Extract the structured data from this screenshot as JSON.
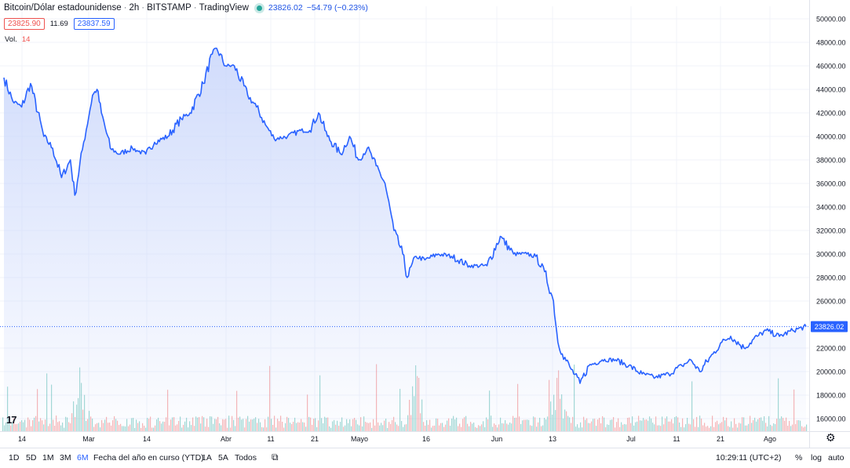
{
  "header": {
    "symbol": "Bitcoin/Dólar estadounidense",
    "interval": "2h",
    "exchange": "BITSTAMP",
    "source": "TradingView",
    "last_price": "23826.02",
    "change": "−54.79 (−0.23%)",
    "bid": "23825.90",
    "spread": "11.69",
    "ask": "23837.59"
  },
  "volume_label": {
    "label": "Vol.",
    "value": "14"
  },
  "colors": {
    "line": "#2962ff",
    "area_top": "#c9d6fb",
    "up": "#26a69a",
    "down": "#ef5350",
    "price_tag": "#2962ff"
  },
  "bottom_bar": {
    "ranges": [
      "1D",
      "5D",
      "1M",
      "3M",
      "6M",
      "Fecha del año en curso (YTD)",
      "1A",
      "5A",
      "Todos"
    ],
    "active_range": "6M",
    "compare_icon": "calendar-range-icon",
    "time": "10:29:11 (UTC+2)",
    "percent": "%",
    "log": "log",
    "auto": "auto"
  },
  "chart_data": {
    "type": "area",
    "title": "Bitcoin/Dólar estadounidense · 2h · BITSTAMP",
    "ylim": [
      15000,
      50500
    ],
    "yticks": [
      "50000.00",
      "48000.00",
      "46000.00",
      "44000.00",
      "42000.00",
      "40000.00",
      "38000.00",
      "36000.00",
      "34000.00",
      "32000.00",
      "30000.00",
      "28000.00",
      "26000.00",
      "22000.00",
      "20000.00",
      "18000.00",
      "16000.00"
    ],
    "xticks": [
      "14",
      "Mar",
      "14",
      "Abr",
      "11",
      "21",
      "Mayo",
      "16",
      "Jun",
      "13",
      "Jul",
      "11",
      "21",
      "Ago"
    ],
    "last_value": 23826.02,
    "grid": true,
    "series": [
      {
        "x": [
          "Feb 8",
          "Feb 10",
          "Feb 12",
          "Feb 14",
          "Feb 17",
          "Feb 19",
          "Feb 21",
          "Feb 23",
          "Feb 24",
          "Feb 26",
          "Feb 28",
          "Mar 1",
          "Mar 2",
          "Mar 4",
          "Mar 6",
          "Mar 9",
          "Mar 10",
          "Mar 12",
          "Mar 14",
          "Mar 17",
          "Mar 20",
          "Mar 22",
          "Mar 25",
          "Mar 27",
          "Mar 28",
          "Mar 30",
          "Apr 1",
          "Apr 4",
          "Apr 6",
          "Apr 8",
          "Apr 10",
          "Apr 13",
          "Apr 16",
          "Apr 18",
          "Apr 20",
          "Apr 22",
          "Apr 25",
          "Apr 27",
          "Apr 29",
          "May 1",
          "May 3",
          "May 5",
          "May 7",
          "May 9",
          "May 10",
          "May 12",
          "May 14",
          "May 17",
          "May 20",
          "May 24",
          "May 28",
          "May 31",
          "Jun 3",
          "Jun 6",
          "Jun 8",
          "Jun 10",
          "Jun 12",
          "Jun 13",
          "Jun 14",
          "Jun 16",
          "Jun 18",
          "Jun 20",
          "Jun 23",
          "Jun 26",
          "Jun 29",
          "Jul 2",
          "Jul 5",
          "Jul 8",
          "Jul 11",
          "Jul 13",
          "Jul 15",
          "Jul 18",
          "Jul 20",
          "Jul 22",
          "Jul 25",
          "Jul 28",
          "Jul 30",
          "Aug 2",
          "Aug 5",
          "Aug 8"
        ],
        "y": [
          45000,
          43000,
          42500,
          44500,
          40000,
          39000,
          36500,
          38000,
          35000,
          39500,
          43500,
          44000,
          42000,
          39000,
          38500,
          39000,
          38800,
          38500,
          39500,
          40000,
          41500,
          42000,
          44500,
          47000,
          47500,
          46000,
          46000,
          43500,
          42500,
          41000,
          39800,
          40000,
          40500,
          40500,
          42000,
          40000,
          38500,
          40000,
          38000,
          39000,
          37500,
          36000,
          32000,
          30000,
          28000,
          29800,
          29500,
          30000,
          29800,
          29000,
          29000,
          31500,
          30000,
          30000,
          29800,
          28500,
          26000,
          22500,
          21500,
          20200,
          19000,
          20500,
          21000,
          21000,
          20500,
          19800,
          19500,
          19800,
          20500,
          21000,
          20000,
          21500,
          22500,
          23000,
          22000,
          23000,
          23500,
          23000,
          23500,
          23826
        ]
      }
    ],
    "volume": {
      "note": "decorative per-bar volume histogram",
      "spikes": [
        {
          "x": "May 12",
          "value": "high"
        },
        {
          "x": "Jun 13",
          "value": "high"
        },
        {
          "x": "Feb 25",
          "value": "high"
        }
      ]
    }
  }
}
